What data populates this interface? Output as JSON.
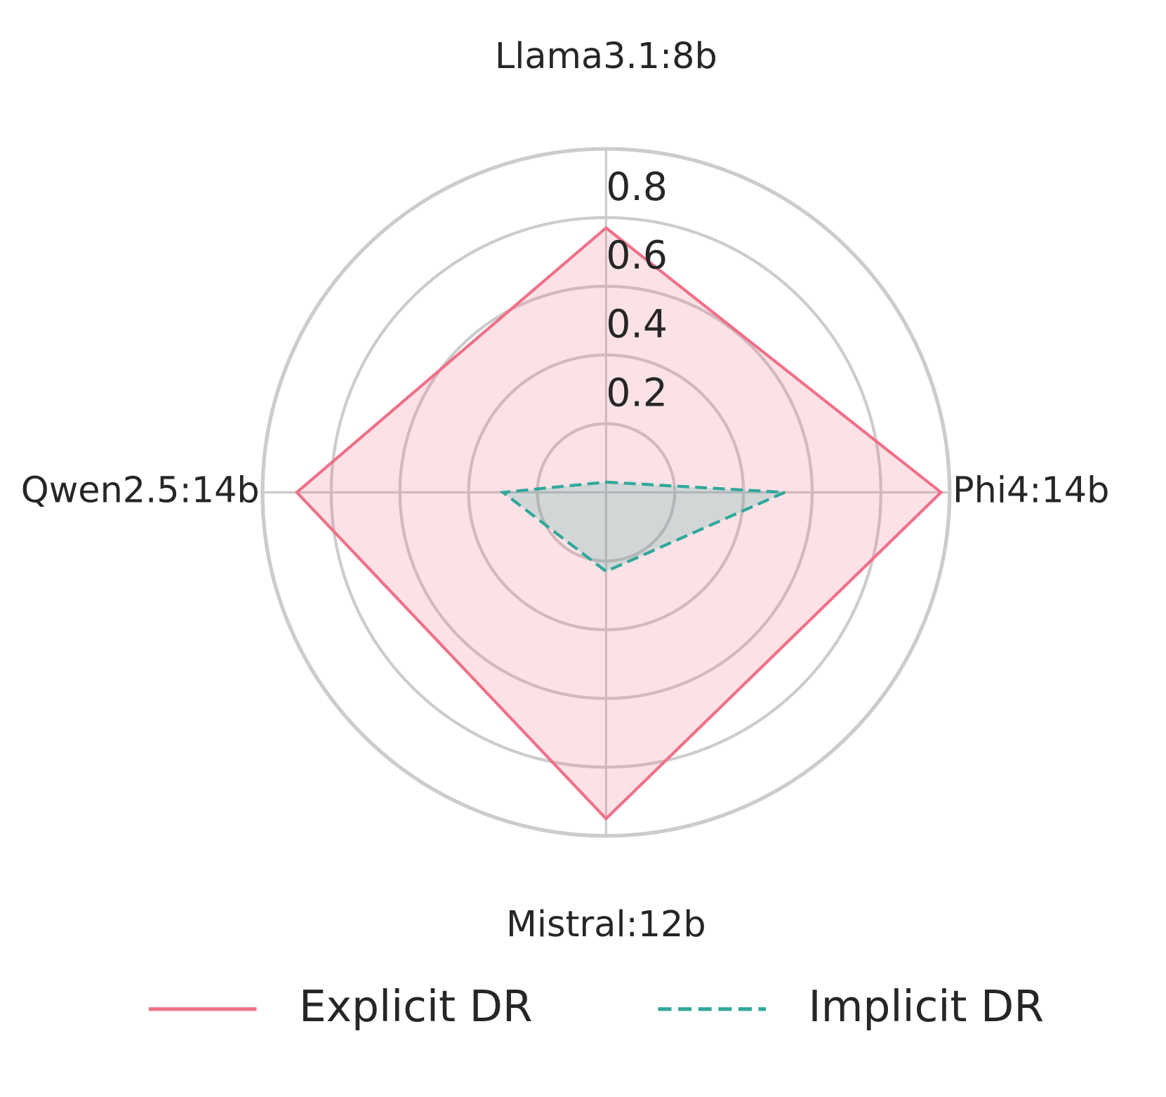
{
  "chart_data": {
    "type": "radar",
    "categories": [
      "Llama3.1:8b",
      "Phi4:14b",
      "Mistral:12b",
      "Qwen2.5:14b"
    ],
    "ylim": [
      0,
      1
    ],
    "yticks": [
      0.2,
      0.4,
      0.6,
      0.8
    ],
    "grid": true,
    "legend": "bottom",
    "series": [
      {
        "name": "Explicit DR",
        "color": "#f07089",
        "linestyle": "solid",
        "values": [
          0.77,
          0.975,
          0.95,
          0.9
        ]
      },
      {
        "name": "Implicit DR",
        "color": "#2fa89a",
        "linestyle": "dashed",
        "values": [
          0.03,
          0.52,
          0.23,
          0.3
        ]
      }
    ]
  }
}
